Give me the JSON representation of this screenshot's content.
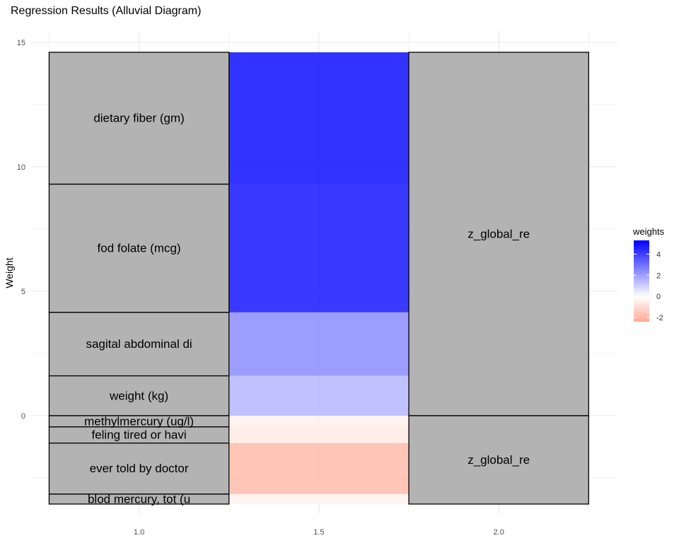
{
  "chart_data": {
    "type": "alluvial",
    "title": "Regression Results (Alluvial Diagram)",
    "xlabel": "",
    "ylabel": "Weight",
    "xlim": [
      0.7,
      2.33
    ],
    "ylim": [
      -3.95,
      15.45
    ],
    "x_ticks": [
      1.0,
      1.5,
      2.0
    ],
    "x_tick_labels": [
      "1.0",
      "1.5",
      "2.0"
    ],
    "y_ticks": [
      0,
      5,
      10,
      15
    ],
    "y_tick_labels": [
      "0",
      "5",
      "10",
      "15"
    ],
    "grid": true,
    "strata": [
      {
        "x": 1.0,
        "items": [
          {
            "label": "dietary fiber (gm)",
            "weight": 5.3,
            "y0": 9.3,
            "y1": 14.6
          },
          {
            "label": "fod folate (mcg)",
            "weight": 5.15,
            "y0": 4.15,
            "y1": 9.3
          },
          {
            "label": "sagital abdominal di",
            "weight": 2.55,
            "y0": 1.6,
            "y1": 4.15
          },
          {
            "label": "weight (kg)",
            "weight": 1.6,
            "y0": 0.0,
            "y1": 1.6
          },
          {
            "label": "methylmercury (ug/l)",
            "weight": -0.45,
            "y0": -0.45,
            "y1": 0.0
          },
          {
            "label": "feling tired or havi",
            "weight": -0.65,
            "y0": -1.1,
            "y1": -0.45
          },
          {
            "label": "ever told by doctor",
            "weight": -2.05,
            "y0": -3.15,
            "y1": -1.1
          },
          {
            "label": "blod mercury, tot (u",
            "weight": -0.4,
            "y0": -3.55,
            "y1": -3.15
          }
        ]
      },
      {
        "x": 2.0,
        "items": [
          {
            "label": "z_global_re",
            "y0": 0.0,
            "y1": 14.6
          },
          {
            "label": "z_global_re",
            "y0": -3.55,
            "y1": 0.0
          }
        ]
      }
    ],
    "legend": {
      "title": "weights",
      "placement": "right",
      "range": [
        -2.4,
        5.3
      ],
      "ticks": [
        4,
        2,
        0,
        -2
      ],
      "tick_labels": [
        "4",
        "2",
        "0",
        "-2"
      ],
      "colors": {
        "low": "#ffa995",
        "mid": "#ffffff",
        "high": "#0000ff"
      }
    }
  }
}
